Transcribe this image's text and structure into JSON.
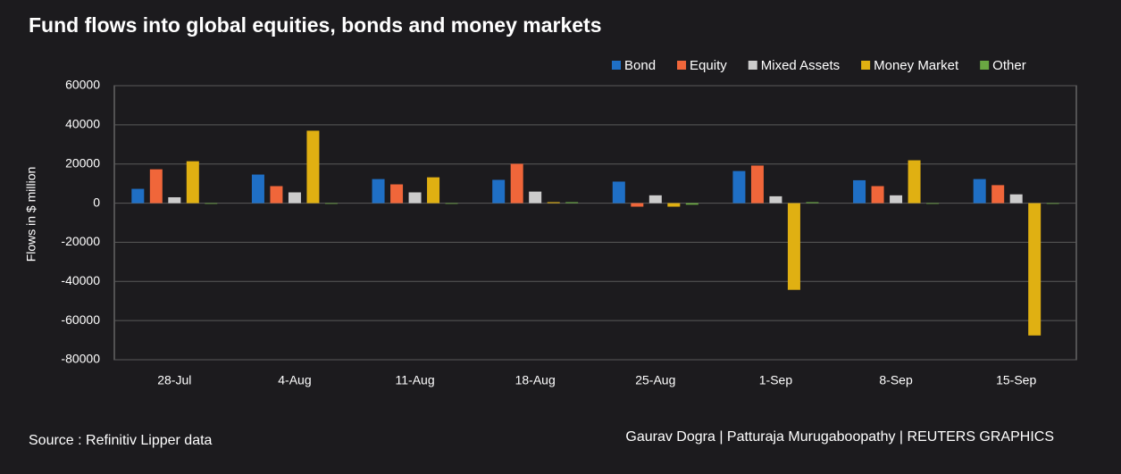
{
  "chart_data": {
    "type": "bar",
    "title": "Fund flows into global equities, bonds and money markets",
    "y_label": "Flows in $ million",
    "source": "Source : Refinitiv Lipper data",
    "credit": "Gaurav Dogra | Patturaja Murugaboopathy | REUTERS GRAPHICS",
    "categories": [
      "28-Jul",
      "4-Aug",
      "11-Aug",
      "18-Aug",
      "25-Aug",
      "1-Sep",
      "8-Sep",
      "15-Sep"
    ],
    "series": [
      {
        "name": "Bond",
        "color": "#1f6fc5",
        "values": [
          7300,
          14600,
          12300,
          11900,
          11000,
          16400,
          11700,
          12300
        ]
      },
      {
        "name": "Equity",
        "color": "#f0663a",
        "values": [
          17300,
          8700,
          9600,
          20100,
          -1800,
          19200,
          8700,
          9200
        ]
      },
      {
        "name": "Mixed Assets",
        "color": "#cccccc",
        "values": [
          3000,
          5500,
          5500,
          5900,
          4000,
          3500,
          4000,
          4500
        ]
      },
      {
        "name": "Money Market",
        "color": "#e0b012",
        "values": [
          21400,
          37000,
          13200,
          500,
          -1800,
          -44300,
          21900,
          -67600
        ]
      },
      {
        "name": "Other",
        "color": "#6aa842",
        "values": [
          -300,
          -200,
          -200,
          500,
          -800,
          500,
          -300,
          -300
        ]
      }
    ],
    "ylim": [
      -80000,
      60000
    ],
    "yticks": [
      -80000,
      -60000,
      -40000,
      -20000,
      0,
      20000,
      40000,
      60000
    ],
    "grid": true
  }
}
